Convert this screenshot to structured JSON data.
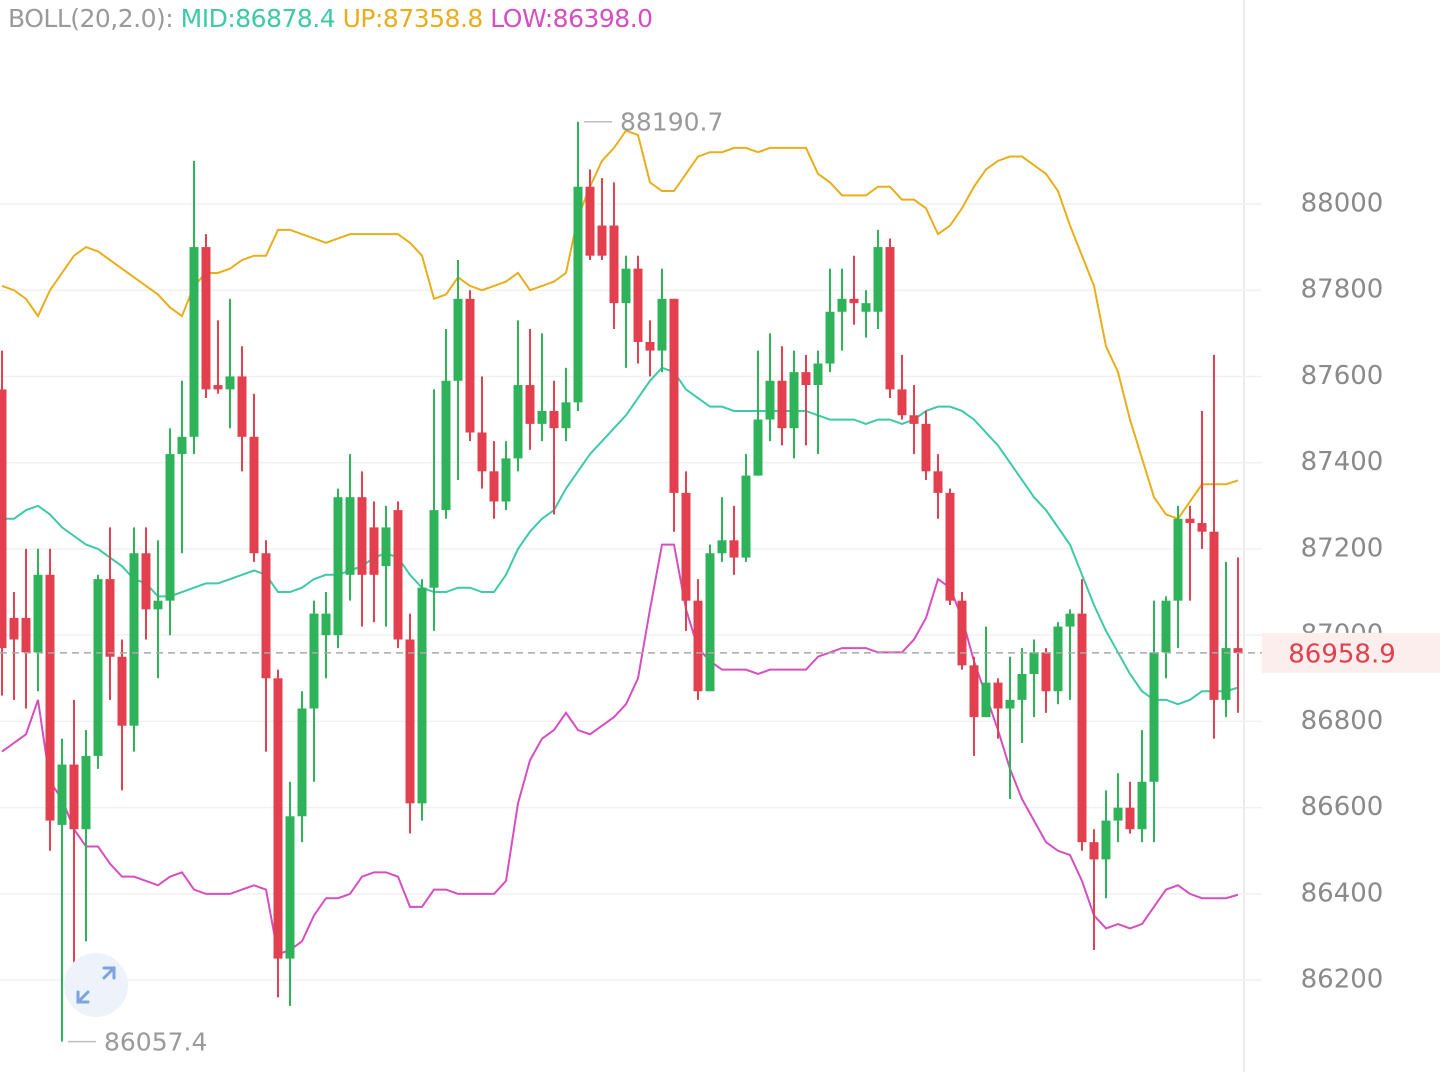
{
  "chart_data": {
    "type": "candlestick",
    "indicator": "BOLL(20,2.0):",
    "up_color": "#2fb35a",
    "down_color": "#e2404f",
    "ylim": [
      85987,
      88473
    ],
    "yticks": [
      86200,
      86400,
      86600,
      86800,
      87000,
      87200,
      87400,
      87600,
      87800,
      88000
    ],
    "grid": true,
    "candles": {
      "open": [
        87570,
        87040,
        87040,
        86960,
        87140,
        86560,
        86700,
        86550,
        86720,
        87130,
        86950,
        86790,
        87190,
        87060,
        87080,
        87420,
        87460,
        87900,
        87580,
        87570,
        87600,
        87460,
        87190,
        86900,
        86250,
        86580,
        86830,
        87000,
        87000,
        87140,
        87320,
        87250,
        87160,
        87290,
        86990,
        86610,
        87110,
        87290,
        87590,
        87780,
        87470,
        87380,
        87310,
        87410,
        87580,
        87490,
        87520,
        87480,
        87540,
        88040,
        87950,
        87950,
        87770,
        87850,
        87680,
        87660,
        87780,
        87330,
        87080,
        86870,
        87190,
        87220,
        87180,
        87370,
        87500,
        87590,
        87480,
        87610,
        87580,
        87630,
        87750,
        87780,
        87750,
        87750,
        87900,
        87570,
        87510,
        87490,
        87380,
        87330,
        87080,
        86930,
        86810,
        86890,
        86830,
        86850,
        86910,
        86960,
        86870,
        87020,
        87050,
        86520,
        86480,
        86570,
        86600,
        86550,
        86660,
        86960,
        87080,
        87270,
        87260,
        87240,
        86850,
        86970
      ],
      "high": [
        87660,
        87100,
        87200,
        87200,
        87200,
        86760,
        86850,
        86780,
        87140,
        87250,
        86990,
        87250,
        87250,
        87220,
        87480,
        87590,
        88100,
        87930,
        87730,
        87780,
        87670,
        87560,
        87220,
        86920,
        86660,
        86870,
        87080,
        87100,
        87340,
        87420,
        87380,
        87310,
        87300,
        87310,
        87050,
        87130,
        87570,
        87710,
        87870,
        87800,
        87600,
        87450,
        87450,
        87730,
        87710,
        87700,
        87590,
        87620,
        88190.7,
        88080,
        88060,
        88050,
        87880,
        87880,
        87730,
        87850,
        87780,
        87380,
        87130,
        87210,
        87320,
        87300,
        87420,
        87660,
        87700,
        87670,
        87660,
        87650,
        87660,
        87850,
        87850,
        87880,
        87800,
        87940,
        87920,
        87650,
        87580,
        87520,
        87420,
        87340,
        87100,
        86950,
        87020,
        86900,
        86950,
        86970,
        86990,
        86970,
        87030,
        87060,
        87130,
        86550,
        86640,
        86680,
        86660,
        86780,
        87080,
        87090,
        87300,
        87300,
        87520,
        87650,
        87170,
        87180
      ],
      "low": [
        86860,
        86850,
        86830,
        86870,
        86500,
        86057.4,
        86150,
        86290,
        86690,
        86850,
        86640,
        86730,
        86990,
        86900,
        87000,
        87190,
        87420,
        87550,
        87560,
        87480,
        87380,
        87170,
        86730,
        86160,
        86140,
        86520,
        86660,
        86900,
        86970,
        87080,
        87020,
        87030,
        87020,
        86970,
        86540,
        86570,
        87010,
        87270,
        87360,
        87450,
        87340,
        87270,
        87290,
        87380,
        87430,
        87450,
        87280,
        87450,
        87520,
        87870,
        87870,
        87710,
        87620,
        87630,
        87600,
        87610,
        87240,
        87010,
        86850,
        86870,
        87170,
        87140,
        87170,
        87370,
        87450,
        87440,
        87410,
        87440,
        87420,
        87610,
        87660,
        87720,
        87690,
        87710,
        87550,
        87500,
        87420,
        87360,
        87270,
        87070,
        86920,
        86720,
        86810,
        86760,
        86620,
        86750,
        86810,
        86820,
        86840,
        86850,
        86500,
        86270,
        86390,
        86520,
        86540,
        86520,
        86520,
        86900,
        86970,
        87080,
        87200,
        86760,
        86810,
        86820
      ],
      "close": [
        86970,
        86990,
        86960,
        87140,
        86570,
        86700,
        86550,
        86720,
        87130,
        86950,
        86790,
        87190,
        87060,
        87080,
        87420,
        87460,
        87900,
        87570,
        87570,
        87600,
        87460,
        87190,
        86900,
        86250,
        86580,
        86830,
        87050,
        87050,
        87320,
        87320,
        87140,
        87140,
        87250,
        86990,
        86610,
        87110,
        87290,
        87590,
        87780,
        87470,
        87380,
        87310,
        87410,
        87580,
        87490,
        87520,
        87480,
        87540,
        88040,
        87880,
        87880,
        87770,
        87850,
        87680,
        87660,
        87780,
        87330,
        87080,
        86870,
        87190,
        87220,
        87180,
        87370,
        87500,
        87590,
        87480,
        87610,
        87580,
        87630,
        87750,
        87780,
        87770,
        87770,
        87900,
        87570,
        87510,
        87490,
        87380,
        87330,
        87080,
        86930,
        86810,
        86890,
        86830,
        86850,
        86910,
        86960,
        86870,
        87020,
        87050,
        86520,
        86480,
        86570,
        86600,
        86550,
        86660,
        86960,
        87080,
        87270,
        87260,
        87240,
        86850,
        86970,
        86958.9
      ]
    },
    "series": [
      {
        "name": "MID:",
        "color": "#3ec9a7",
        "values": [
          87270,
          87270,
          87290,
          87300,
          87280,
          87250,
          87230,
          87210,
          87200,
          87180,
          87160,
          87130,
          87120,
          87090,
          87090,
          87100,
          87110,
          87120,
          87120,
          87130,
          87140,
          87150,
          87140,
          87100,
          87100,
          87110,
          87130,
          87140,
          87140,
          87150,
          87160,
          87180,
          87190,
          87180,
          87140,
          87110,
          87100,
          87100,
          87110,
          87110,
          87100,
          87100,
          87140,
          87200,
          87240,
          87270,
          87290,
          87340,
          87380,
          87420,
          87450,
          87480,
          87510,
          87550,
          87590,
          87620,
          87610,
          87570,
          87550,
          87530,
          87530,
          87520,
          87520,
          87520,
          87520,
          87520,
          87520,
          87520,
          87510,
          87500,
          87500,
          87500,
          87490,
          87500,
          87500,
          87490,
          87500,
          87520,
          87530,
          87530,
          87520,
          87500,
          87470,
          87440,
          87400,
          87360,
          87320,
          87290,
          87250,
          87210,
          87140,
          87070,
          87010,
          86960,
          86910,
          86870,
          86850,
          86850,
          86840,
          86850,
          86870,
          86870,
          86870,
          86878.4
        ]
      },
      {
        "name": "UP:",
        "color": "#e9ae1c",
        "values": [
          87810,
          87800,
          87780,
          87740,
          87800,
          87840,
          87880,
          87900,
          87890,
          87870,
          87850,
          87830,
          87810,
          87790,
          87760,
          87740,
          87810,
          87840,
          87840,
          87850,
          87870,
          87880,
          87880,
          87940,
          87940,
          87930,
          87920,
          87910,
          87920,
          87930,
          87930,
          87930,
          87930,
          87930,
          87910,
          87880,
          87780,
          87790,
          87830,
          87810,
          87800,
          87810,
          87820,
          87840,
          87800,
          87810,
          87820,
          87840,
          87970,
          88040,
          88100,
          88130,
          88170,
          88160,
          88050,
          88030,
          88030,
          88070,
          88110,
          88120,
          88120,
          88130,
          88130,
          88120,
          88130,
          88130,
          88130,
          88130,
          88070,
          88050,
          88020,
          88020,
          88020,
          88040,
          88040,
          88010,
          88010,
          87990,
          87930,
          87950,
          87990,
          88040,
          88080,
          88100,
          88110,
          88110,
          88090,
          88070,
          88030,
          87950,
          87880,
          87810,
          87670,
          87610,
          87500,
          87410,
          87320,
          87280,
          87270,
          87310,
          87350,
          87350,
          87350,
          87358.8
        ]
      },
      {
        "name": "LOW:",
        "color": "#d64fc0",
        "value_label": "86398.0",
        "values": [
          86730,
          86750,
          86770,
          86850,
          86660,
          86620,
          86550,
          86510,
          86510,
          86470,
          86440,
          86440,
          86430,
          86420,
          86440,
          86450,
          86410,
          86400,
          86400,
          86400,
          86410,
          86420,
          86410,
          86260,
          86270,
          86290,
          86350,
          86390,
          86390,
          86400,
          86440,
          86450,
          86450,
          86440,
          86370,
          86370,
          86410,
          86410,
          86400,
          86400,
          86400,
          86400,
          86430,
          86610,
          86710,
          86760,
          86780,
          86820,
          86780,
          86770,
          86790,
          86810,
          86840,
          86900,
          87060,
          87210,
          87210,
          87060,
          86970,
          86940,
          86920,
          86920,
          86920,
          86910,
          86920,
          86920,
          86920,
          86920,
          86950,
          86960,
          86970,
          86970,
          86970,
          86960,
          86960,
          86960,
          86990,
          87040,
          87130,
          87110,
          87040,
          86940,
          86860,
          86780,
          86690,
          86620,
          86570,
          86520,
          86500,
          86490,
          86430,
          86350,
          86320,
          86330,
          86320,
          86330,
          86370,
          86410,
          86420,
          86400,
          86390,
          86390,
          86390,
          86398
        ]
      }
    ]
  }
}
